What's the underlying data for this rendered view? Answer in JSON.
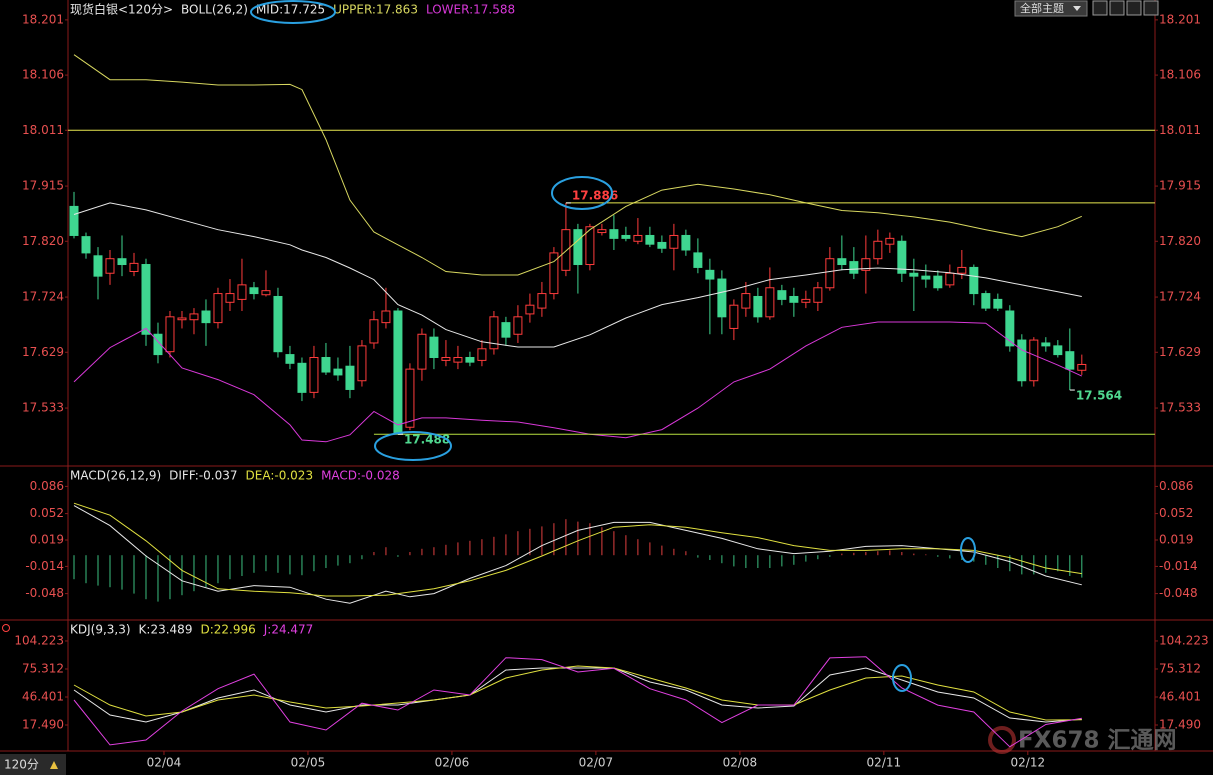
{
  "chart_data": [
    {
      "type": "candlestick",
      "title": "现货白银<120分>",
      "indicator": "BOLL(26,2)",
      "xlim": [
        -0.5,
        90.1
      ],
      "ylim": [
        17.435,
        18.218
      ],
      "yticks": [
        18.201,
        18.106,
        18.011,
        17.915,
        {
          "value": 17.82,
          "label": "17.820"
        },
        17.724,
        17.629,
        17.533
      ],
      "up_color": "#ff3c3c",
      "down_color": "#3fd690",
      "open": [
        17.88,
        17.828,
        17.795,
        17.765,
        17.79,
        17.768,
        17.78,
        17.66,
        17.63,
        17.685,
        17.685,
        17.7,
        17.68,
        17.715,
        17.72,
        17.74,
        17.728,
        17.725,
        17.625,
        17.61,
        17.56,
        17.62,
        17.6,
        17.605,
        17.58,
        17.645,
        17.68,
        17.7,
        17.5,
        17.6,
        17.655,
        17.615,
        17.612,
        17.62,
        17.615,
        17.635,
        17.68,
        17.66,
        17.695,
        17.705,
        17.73,
        17.77,
        17.84,
        17.78,
        17.835,
        17.84,
        17.83,
        17.82,
        17.83,
        17.818,
        17.808,
        17.83,
        17.8,
        17.77,
        17.755,
        17.67,
        17.705,
        17.725,
        17.69,
        17.735,
        17.725,
        17.715,
        17.715,
        17.74,
        17.79,
        17.785,
        17.77,
        17.79,
        17.815,
        17.82,
        17.765,
        17.76,
        17.76,
        17.745,
        17.765,
        17.775,
        17.73,
        17.72,
        17.7,
        17.65,
        17.58,
        17.645,
        17.64,
        17.63,
        17.598
      ],
      "high": [
        17.905,
        17.835,
        17.81,
        17.805,
        17.83,
        17.8,
        17.79,
        17.68,
        17.7,
        17.7,
        17.705,
        17.72,
        17.74,
        17.755,
        17.79,
        17.75,
        17.77,
        17.74,
        17.64,
        17.62,
        17.64,
        17.645,
        17.62,
        17.64,
        17.65,
        17.7,
        17.74,
        17.705,
        17.61,
        17.67,
        17.67,
        17.65,
        17.64,
        17.63,
        17.65,
        17.7,
        17.69,
        17.71,
        17.73,
        17.75,
        17.81,
        17.886,
        17.85,
        17.85,
        17.85,
        17.865,
        17.845,
        17.86,
        17.845,
        17.83,
        17.85,
        17.84,
        17.825,
        17.79,
        17.77,
        17.72,
        17.75,
        17.74,
        17.775,
        17.745,
        17.74,
        17.735,
        17.75,
        17.81,
        17.83,
        17.81,
        17.83,
        17.84,
        17.835,
        17.83,
        17.79,
        17.78,
        17.77,
        17.78,
        17.805,
        17.78,
        17.735,
        17.73,
        17.71,
        17.66,
        17.655,
        17.655,
        17.65,
        17.67,
        17.625
      ],
      "low": [
        17.825,
        17.79,
        17.72,
        17.745,
        17.76,
        17.76,
        17.64,
        17.61,
        17.62,
        17.67,
        17.66,
        17.64,
        17.67,
        17.7,
        17.7,
        17.72,
        17.725,
        17.62,
        17.6,
        17.545,
        17.55,
        17.59,
        17.58,
        17.55,
        17.57,
        17.635,
        17.67,
        17.488,
        17.495,
        17.58,
        17.6,
        17.605,
        17.6,
        17.605,
        17.605,
        17.625,
        17.64,
        17.645,
        17.68,
        17.69,
        17.72,
        17.76,
        17.73,
        17.77,
        17.83,
        17.805,
        17.82,
        17.815,
        17.81,
        17.8,
        17.77,
        17.795,
        17.765,
        17.66,
        17.66,
        17.65,
        17.69,
        17.68,
        17.685,
        17.71,
        17.69,
        17.705,
        17.7,
        17.735,
        17.77,
        17.755,
        17.73,
        17.78,
        17.8,
        17.75,
        17.7,
        17.74,
        17.735,
        17.74,
        17.755,
        17.71,
        17.7,
        17.7,
        17.63,
        17.57,
        17.57,
        17.63,
        17.62,
        17.564,
        17.59
      ],
      "close": [
        17.83,
        17.8,
        17.76,
        17.79,
        17.78,
        17.782,
        17.66,
        17.625,
        17.69,
        17.688,
        17.695,
        17.68,
        17.73,
        17.73,
        17.745,
        17.73,
        17.735,
        17.63,
        17.61,
        17.56,
        17.62,
        17.595,
        17.59,
        17.565,
        17.64,
        17.685,
        17.7,
        17.49,
        17.6,
        17.66,
        17.62,
        17.62,
        17.62,
        17.612,
        17.635,
        17.69,
        17.655,
        17.69,
        17.71,
        17.73,
        17.8,
        17.84,
        17.78,
        17.845,
        17.84,
        17.825,
        17.825,
        17.83,
        17.815,
        17.808,
        17.83,
        17.805,
        17.775,
        17.755,
        17.69,
        17.71,
        17.73,
        17.69,
        17.74,
        17.72,
        17.715,
        17.72,
        17.74,
        17.79,
        17.78,
        17.765,
        17.79,
        17.82,
        17.825,
        17.765,
        17.76,
        17.755,
        17.74,
        17.765,
        17.775,
        17.73,
        17.705,
        17.705,
        17.64,
        17.58,
        17.65,
        17.64,
        17.625,
        17.6,
        17.608
      ],
      "series": [
        {
          "name": "MID:17.725",
          "color": "#e8e8e8",
          "x": [
            0,
            3,
            6,
            9,
            12,
            15,
            18,
            19,
            21,
            23,
            25,
            27,
            29,
            31,
            34,
            37,
            40,
            43,
            46,
            49,
            52,
            55,
            58,
            61,
            64,
            67,
            70,
            73,
            76,
            79,
            82,
            84
          ],
          "values": [
            17.866,
            17.886,
            17.874,
            17.857,
            17.84,
            17.828,
            17.814,
            17.805,
            17.792,
            17.774,
            17.754,
            17.711,
            17.693,
            17.668,
            17.647,
            17.638,
            17.638,
            17.659,
            17.688,
            17.711,
            17.723,
            17.737,
            17.754,
            17.762,
            17.771,
            17.774,
            17.771,
            17.766,
            17.757,
            17.745,
            17.733,
            17.725
          ]
        },
        {
          "name": "UPPER:17.863",
          "color": "#d8d860",
          "x": [
            0,
            3,
            6,
            9,
            12,
            15,
            18,
            19,
            21,
            23,
            25,
            27,
            29,
            31,
            34,
            37,
            40,
            43,
            46,
            49,
            52,
            55,
            58,
            61,
            64,
            67,
            70,
            73,
            76,
            79,
            82,
            84
          ],
          "values": [
            18.141,
            18.098,
            18.098,
            18.094,
            18.089,
            18.089,
            18.09,
            18.081,
            17.995,
            17.891,
            17.836,
            17.814,
            17.792,
            17.768,
            17.762,
            17.762,
            17.785,
            17.84,
            17.88,
            17.908,
            17.918,
            17.91,
            17.9,
            17.886,
            17.873,
            17.869,
            17.862,
            17.853,
            17.84,
            17.828,
            17.845,
            17.863
          ]
        },
        {
          "name": "LOWER:17.588",
          "color": "#d838d8",
          "x": [
            0,
            3,
            6,
            9,
            12,
            15,
            18,
            19,
            21,
            23,
            25,
            27,
            29,
            31,
            34,
            37,
            40,
            43,
            46,
            49,
            52,
            55,
            58,
            61,
            64,
            67,
            70,
            73,
            76,
            79,
            82,
            84
          ],
          "values": [
            17.578,
            17.637,
            17.67,
            17.602,
            17.582,
            17.556,
            17.504,
            17.478,
            17.475,
            17.487,
            17.527,
            17.504,
            17.516,
            17.516,
            17.512,
            17.509,
            17.499,
            17.488,
            17.482,
            17.496,
            17.533,
            17.578,
            17.6,
            17.64,
            17.672,
            17.681,
            17.681,
            17.681,
            17.679,
            17.633,
            17.607,
            17.588
          ]
        }
      ],
      "hlines": [
        {
          "value": 18.011,
          "x": -0.5,
          "color": "#e8e850"
        },
        {
          "value": 17.886,
          "x": 41,
          "color": "#e8e850"
        },
        {
          "value": 17.488,
          "x": 25,
          "color": "#b8e040"
        }
      ],
      "annotations": [
        {
          "x": 41,
          "value": 17.886,
          "color": "#ff4040",
          "position": "above"
        },
        {
          "x": 27,
          "value": 17.488,
          "color": "#50d890",
          "position": "below"
        },
        {
          "x": 83,
          "value": 17.564,
          "color": "#50d890",
          "position": "below"
        }
      ]
    },
    {
      "type": "combo",
      "indicator": "MACD(26,12,9)",
      "xlim": [
        -0.5,
        90.1
      ],
      "ylim": [
        -0.081,
        0.109
      ],
      "yticks": [
        0.086,
        0.052,
        0.019,
        -0.014,
        -0.048
      ],
      "series": [
        {
          "name": "DIFF:-0.037",
          "color": "#e8e8e8",
          "x": [
            0,
            3,
            6,
            9,
            12,
            15,
            18,
            21,
            23,
            26,
            28,
            30,
            33,
            36,
            39,
            42,
            45,
            48,
            51,
            54,
            57,
            60,
            63,
            66,
            69,
            72,
            75,
            78,
            81,
            84
          ],
          "values": [
            0.062,
            0.037,
            -0.001,
            -0.032,
            -0.045,
            -0.038,
            -0.04,
            -0.055,
            -0.06,
            -0.045,
            -0.052,
            -0.048,
            -0.029,
            -0.013,
            0.012,
            0.031,
            0.041,
            0.041,
            0.031,
            0.021,
            0.008,
            0.002,
            0.005,
            0.011,
            0.012,
            0.008,
            0.004,
            -0.008,
            -0.026,
            -0.037
          ]
        },
        {
          "name": "DEA:-0.023",
          "color": "#e0e040",
          "x": [
            0,
            3,
            6,
            9,
            12,
            15,
            18,
            21,
            23,
            26,
            28,
            30,
            33,
            36,
            39,
            42,
            45,
            48,
            51,
            54,
            57,
            60,
            63,
            66,
            69,
            72,
            75,
            78,
            81,
            84
          ],
          "values": [
            0.065,
            0.05,
            0.018,
            -0.019,
            -0.042,
            -0.045,
            -0.047,
            -0.051,
            -0.051,
            -0.05,
            -0.046,
            -0.042,
            -0.032,
            -0.019,
            -0.001,
            0.018,
            0.035,
            0.038,
            0.035,
            0.028,
            0.022,
            0.012,
            0.006,
            0.006,
            0.008,
            0.008,
            0.006,
            -0.003,
            -0.016,
            -0.023
          ]
        }
      ],
      "histogram": {
        "name": "MACD:-0.028",
        "color": "#e040e0",
        "up_color": "#e04040",
        "down_color": "#3cc080",
        "values": [
          -0.03,
          -0.035,
          -0.038,
          -0.04,
          -0.043,
          -0.048,
          -0.055,
          -0.058,
          -0.055,
          -0.05,
          -0.045,
          -0.04,
          -0.035,
          -0.03,
          -0.026,
          -0.022,
          -0.02,
          -0.022,
          -0.024,
          -0.025,
          -0.02,
          -0.016,
          -0.013,
          -0.01,
          -0.005,
          0.004,
          0.01,
          -0.002,
          0.004,
          0.008,
          0.01,
          0.013,
          0.016,
          0.018,
          0.02,
          0.023,
          0.026,
          0.03,
          0.033,
          0.036,
          0.04,
          0.045,
          0.042,
          0.04,
          0.035,
          0.03,
          0.025,
          0.02,
          0.016,
          0.012,
          0.008,
          0.005,
          -0.003,
          -0.006,
          -0.01,
          -0.014,
          -0.016,
          -0.016,
          -0.016,
          -0.014,
          -0.012,
          -0.008,
          -0.005,
          -0.002,
          0.002,
          0.003,
          0.004,
          0.005,
          0.006,
          0.004,
          0.002,
          0.001,
          -0.002,
          -0.004,
          -0.006,
          -0.008,
          -0.012,
          -0.016,
          -0.02,
          -0.024,
          -0.024,
          -0.022,
          -0.02,
          -0.026,
          -0.028
        ]
      }
    },
    {
      "type": "line",
      "indicator": "KDJ(9,3,3)",
      "xlim": [
        -0.5,
        90.1
      ],
      "ylim": [
        -8.3,
        123.8
      ],
      "yticks": [
        104.223,
        75.312,
        46.401,
        {
          "value": 17.49,
          "label": "17.490"
        }
      ],
      "xticks": [
        {
          "value": 7.5,
          "label": "02/04"
        },
        {
          "value": 19.5,
          "label": "02/05"
        },
        {
          "value": 31.5,
          "label": "02/06"
        },
        {
          "value": 43.5,
          "label": "02/07"
        },
        {
          "value": 55.5,
          "label": "02/08"
        },
        {
          "value": 67.5,
          "label": "02/11"
        },
        {
          "value": 79.5,
          "label": "02/12"
        }
      ],
      "series": [
        {
          "name": "K:23.489",
          "color": "#e8e8e8",
          "x": [
            0,
            3,
            6,
            9,
            12,
            15,
            18,
            21,
            24,
            27,
            30,
            33,
            36,
            39,
            42,
            45,
            48,
            51,
            54,
            57,
            60,
            63,
            66,
            69,
            72,
            75,
            78,
            81,
            84
          ],
          "values": [
            53.6,
            27.8,
            20.6,
            30.9,
            45.4,
            53.6,
            38.1,
            30.9,
            38.1,
            38.1,
            43.3,
            48.5,
            74.3,
            76.3,
            76.3,
            76.3,
            61.9,
            53.6,
            38.1,
            35.0,
            37.1,
            69.1,
            76.3,
            63.9,
            51.6,
            45.4,
            24.7,
            20.6,
            23.489
          ]
        },
        {
          "name": "D:22.996",
          "color": "#e0e040",
          "x": [
            0,
            3,
            6,
            9,
            12,
            15,
            18,
            21,
            24,
            27,
            30,
            33,
            36,
            39,
            42,
            45,
            48,
            51,
            54,
            57,
            60,
            63,
            66,
            69,
            72,
            75,
            78,
            81,
            84
          ],
          "values": [
            58.8,
            38.1,
            26.8,
            30.9,
            43.3,
            48.5,
            41.2,
            35.0,
            37.1,
            40.2,
            43.3,
            48.5,
            66.0,
            74.3,
            78.4,
            76.3,
            66.0,
            55.7,
            43.3,
            38.1,
            38.1,
            53.6,
            66.0,
            68.1,
            58.8,
            51.6,
            30.9,
            22.7,
            22.996
          ]
        },
        {
          "name": "J:24.477",
          "color": "#e040e0",
          "x": [
            0,
            3,
            6,
            9,
            12,
            15,
            18,
            21,
            24,
            27,
            30,
            33,
            36,
            39,
            42,
            45,
            48,
            51,
            54,
            57,
            60,
            63,
            66,
            69,
            72,
            75,
            78,
            81,
            84
          ],
          "values": [
            43.3,
            -3,
            2.0,
            32,
            55,
            70,
            20.6,
            12.3,
            40,
            33,
            53.6,
            48.5,
            87,
            85,
            72.2,
            76,
            55,
            43.3,
            20,
            38.1,
            38,
            86.7,
            88,
            55.7,
            38,
            30.9,
            -5,
            18,
            24.477
          ]
        }
      ]
    }
  ],
  "toolbar": {
    "theme_button": "全部主题"
  },
  "footer": {
    "period": "120分",
    "watermark": "FX678 汇通网"
  }
}
